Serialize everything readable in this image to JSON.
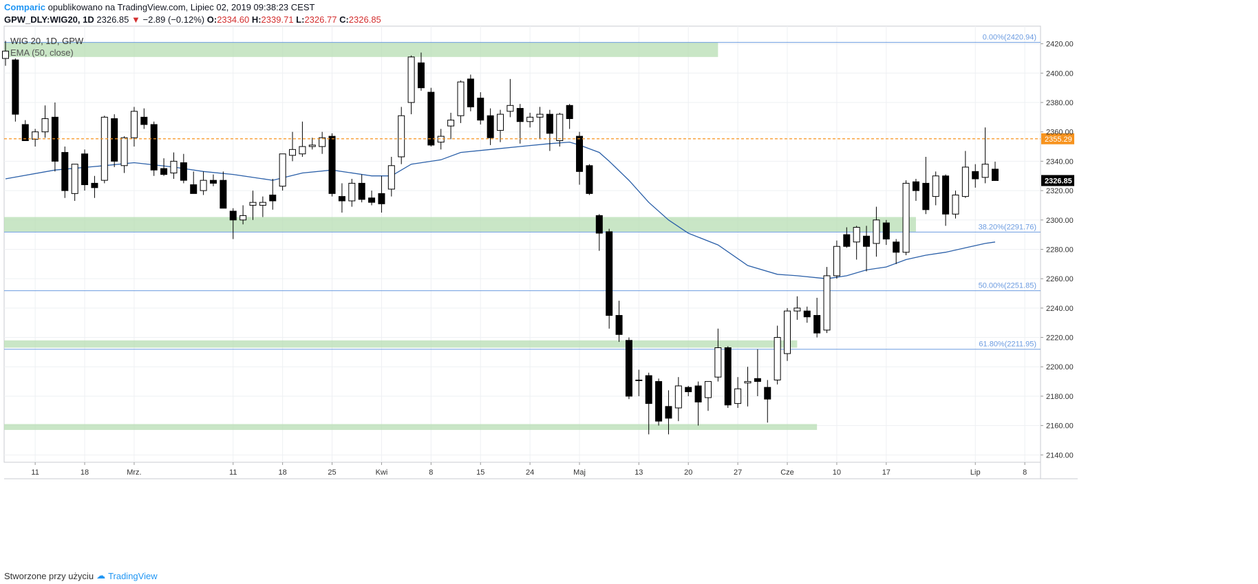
{
  "header": {
    "author": "Comparic",
    "published_text": "opublikowano na TradingView.com, Lipiec 02, 2019 09:38:23 CEST",
    "symbol": "GPW_DLY:WIG20, 1D",
    "last": "2326.85",
    "change": "−2.89 (−0.12%)",
    "o_label": "O:",
    "o_value": "2334.60",
    "h_label": "H:",
    "h_value": "2339.71",
    "l_label": "L:",
    "l_value": "2326.77",
    "c_label": "C:",
    "c_value": "2326.85"
  },
  "legend": {
    "series_name": "WIG 20, 1D, GPW",
    "indicator": "EMA (50, close)"
  },
  "footer": {
    "created_with": "Stworzone przy użyciu",
    "brand": "TradingView"
  },
  "colors": {
    "up_candle_fill": "#ffffff",
    "down_candle_fill": "#000000",
    "ema": "#2a5fa8",
    "fib_line": "#6b9be0",
    "zone": "#b7ddb3",
    "price_line": "#f7931e",
    "grid": "#eef0f3"
  },
  "chart_data": {
    "type": "candlestick",
    "y_range": [
      2135,
      2432
    ],
    "y_ticks": [
      2140,
      2160,
      2180,
      2200,
      2220,
      2240,
      2260,
      2280,
      2300,
      2320,
      2340,
      2360,
      2380,
      2400,
      2420
    ],
    "x_tick_labels": [
      {
        "label": "11",
        "i": 3
      },
      {
        "label": "18",
        "i": 8
      },
      {
        "label": "Mrz.",
        "i": 13
      },
      {
        "label": "11",
        "i": 23
      },
      {
        "label": "18",
        "i": 28
      },
      {
        "label": "25",
        "i": 33
      },
      {
        "label": "Kwi",
        "i": 38
      },
      {
        "label": "8",
        "i": 43
      },
      {
        "label": "15",
        "i": 48
      },
      {
        "label": "24",
        "i": 53
      },
      {
        "label": "Maj",
        "i": 58
      },
      {
        "label": "13",
        "i": 64
      },
      {
        "label": "20",
        "i": 69
      },
      {
        "label": "27",
        "i": 74
      },
      {
        "label": "Cze",
        "i": 79
      },
      {
        "label": "10",
        "i": 84
      },
      {
        "label": "17",
        "i": 89
      },
      {
        "label": "Lip",
        "i": 98
      },
      {
        "label": "8",
        "i": 103
      }
    ],
    "candles": [
      {
        "i": 0,
        "o": 2410,
        "h": 2422,
        "l": 2405,
        "c": 2415
      },
      {
        "i": 1,
        "o": 2409,
        "h": 2410,
        "l": 2367,
        "c": 2372
      },
      {
        "i": 2,
        "o": 2365,
        "h": 2368,
        "l": 2355,
        "c": 2354
      },
      {
        "i": 3,
        "o": 2355,
        "h": 2362,
        "l": 2350,
        "c": 2360
      },
      {
        "i": 4,
        "o": 2360,
        "h": 2378,
        "l": 2356,
        "c": 2369
      },
      {
        "i": 5,
        "o": 2370,
        "h": 2380,
        "l": 2333,
        "c": 2340
      },
      {
        "i": 6,
        "o": 2346,
        "h": 2350,
        "l": 2315,
        "c": 2320
      },
      {
        "i": 7,
        "o": 2318,
        "h": 2338,
        "l": 2313,
        "c": 2338
      },
      {
        "i": 8,
        "o": 2345,
        "h": 2348,
        "l": 2320,
        "c": 2324
      },
      {
        "i": 9,
        "o": 2325,
        "h": 2330,
        "l": 2315,
        "c": 2322
      },
      {
        "i": 10,
        "o": 2327,
        "h": 2371,
        "l": 2325,
        "c": 2370
      },
      {
        "i": 11,
        "o": 2369,
        "h": 2372,
        "l": 2336,
        "c": 2340
      },
      {
        "i": 12,
        "o": 2337,
        "h": 2357,
        "l": 2332,
        "c": 2356
      },
      {
        "i": 13,
        "o": 2356,
        "h": 2377,
        "l": 2350,
        "c": 2374
      },
      {
        "i": 14,
        "o": 2370,
        "h": 2376,
        "l": 2362,
        "c": 2365
      },
      {
        "i": 15,
        "o": 2365,
        "h": 2367,
        "l": 2330,
        "c": 2334
      },
      {
        "i": 16,
        "o": 2335,
        "h": 2342,
        "l": 2330,
        "c": 2331
      },
      {
        "i": 17,
        "o": 2332,
        "h": 2346,
        "l": 2328,
        "c": 2340
      },
      {
        "i": 18,
        "o": 2339,
        "h": 2345,
        "l": 2325,
        "c": 2327
      },
      {
        "i": 19,
        "o": 2324,
        "h": 2333,
        "l": 2318,
        "c": 2318
      },
      {
        "i": 20,
        "o": 2320,
        "h": 2333,
        "l": 2317,
        "c": 2327
      },
      {
        "i": 21,
        "o": 2327,
        "h": 2331,
        "l": 2323,
        "c": 2325
      },
      {
        "i": 22,
        "o": 2327,
        "h": 2333,
        "l": 2310,
        "c": 2308
      },
      {
        "i": 23,
        "o": 2306,
        "h": 2308,
        "l": 2287,
        "c": 2300
      },
      {
        "i": 24,
        "o": 2300,
        "h": 2310,
        "l": 2297,
        "c": 2303
      },
      {
        "i": 25,
        "o": 2310,
        "h": 2320,
        "l": 2300,
        "c": 2312
      },
      {
        "i": 26,
        "o": 2310,
        "h": 2316,
        "l": 2302,
        "c": 2312
      },
      {
        "i": 27,
        "o": 2317,
        "h": 2328,
        "l": 2307,
        "c": 2313
      },
      {
        "i": 28,
        "o": 2323,
        "h": 2345,
        "l": 2320,
        "c": 2345
      },
      {
        "i": 29,
        "o": 2344,
        "h": 2360,
        "l": 2340,
        "c": 2348
      },
      {
        "i": 30,
        "o": 2345,
        "h": 2367,
        "l": 2343,
        "c": 2350
      },
      {
        "i": 31,
        "o": 2350,
        "h": 2356,
        "l": 2348,
        "c": 2351
      },
      {
        "i": 32,
        "o": 2350,
        "h": 2360,
        "l": 2345,
        "c": 2356
      },
      {
        "i": 33,
        "o": 2357,
        "h": 2359,
        "l": 2316,
        "c": 2318
      },
      {
        "i": 34,
        "o": 2316,
        "h": 2325,
        "l": 2305,
        "c": 2313
      },
      {
        "i": 35,
        "o": 2313,
        "h": 2328,
        "l": 2309,
        "c": 2325
      },
      {
        "i": 36,
        "o": 2325,
        "h": 2331,
        "l": 2312,
        "c": 2314
      },
      {
        "i": 37,
        "o": 2315,
        "h": 2320,
        "l": 2310,
        "c": 2312
      },
      {
        "i": 38,
        "o": 2318,
        "h": 2330,
        "l": 2305,
        "c": 2311
      },
      {
        "i": 39,
        "o": 2321,
        "h": 2343,
        "l": 2316,
        "c": 2337
      },
      {
        "i": 40,
        "o": 2343,
        "h": 2377,
        "l": 2338,
        "c": 2371
      },
      {
        "i": 41,
        "o": 2380,
        "h": 2412,
        "l": 2372,
        "c": 2411
      },
      {
        "i": 42,
        "o": 2407,
        "h": 2414,
        "l": 2388,
        "c": 2390
      },
      {
        "i": 43,
        "o": 2387,
        "h": 2390,
        "l": 2350,
        "c": 2351
      },
      {
        "i": 44,
        "o": 2353,
        "h": 2362,
        "l": 2348,
        "c": 2357
      },
      {
        "i": 45,
        "o": 2364,
        "h": 2373,
        "l": 2355,
        "c": 2368
      },
      {
        "i": 46,
        "o": 2371,
        "h": 2395,
        "l": 2366,
        "c": 2394
      },
      {
        "i": 47,
        "o": 2396,
        "h": 2399,
        "l": 2374,
        "c": 2377
      },
      {
        "i": 48,
        "o": 2383,
        "h": 2387,
        "l": 2365,
        "c": 2368
      },
      {
        "i": 49,
        "o": 2371,
        "h": 2376,
        "l": 2351,
        "c": 2356
      },
      {
        "i": 50,
        "o": 2361,
        "h": 2375,
        "l": 2353,
        "c": 2372
      },
      {
        "i": 51,
        "o": 2374,
        "h": 2396,
        "l": 2370,
        "c": 2378
      },
      {
        "i": 52,
        "o": 2376,
        "h": 2379,
        "l": 2352,
        "c": 2367
      },
      {
        "i": 53,
        "o": 2367,
        "h": 2373,
        "l": 2363,
        "c": 2370
      },
      {
        "i": 54,
        "o": 2370,
        "h": 2377,
        "l": 2355,
        "c": 2372
      },
      {
        "i": 55,
        "o": 2372,
        "h": 2375,
        "l": 2347,
        "c": 2359
      },
      {
        "i": 56,
        "o": 2354,
        "h": 2373,
        "l": 2350,
        "c": 2372
      },
      {
        "i": 57,
        "o": 2378,
        "h": 2379,
        "l": 2362,
        "c": 2369
      },
      {
        "i": 58,
        "o": 2357,
        "h": 2360,
        "l": 2324,
        "c": 2333
      },
      {
        "i": 59,
        "o": 2337,
        "h": 2338,
        "l": 2317,
        "c": 2318
      },
      {
        "i": 60,
        "o": 2303,
        "h": 2304,
        "l": 2279,
        "c": 2291
      },
      {
        "i": 61,
        "o": 2292,
        "h": 2294,
        "l": 2226,
        "c": 2235
      },
      {
        "i": 62,
        "o": 2235,
        "h": 2245,
        "l": 2217,
        "c": 2222
      },
      {
        "i": 63,
        "o": 2218,
        "h": 2220,
        "l": 2178,
        "c": 2180
      },
      {
        "i": 64,
        "o": 2191,
        "h": 2198,
        "l": 2180,
        "c": 2191
      },
      {
        "i": 65,
        "o": 2194,
        "h": 2196,
        "l": 2154,
        "c": 2175
      },
      {
        "i": 66,
        "o": 2190,
        "h": 2192,
        "l": 2160,
        "c": 2163
      },
      {
        "i": 67,
        "o": 2173,
        "h": 2184,
        "l": 2154,
        "c": 2165
      },
      {
        "i": 68,
        "o": 2172,
        "h": 2193,
        "l": 2163,
        "c": 2187
      },
      {
        "i": 69,
        "o": 2186,
        "h": 2187,
        "l": 2180,
        "c": 2183
      },
      {
        "i": 70,
        "o": 2187,
        "h": 2190,
        "l": 2160,
        "c": 2176
      },
      {
        "i": 71,
        "o": 2179,
        "h": 2190,
        "l": 2170,
        "c": 2190
      },
      {
        "i": 72,
        "o": 2193,
        "h": 2226,
        "l": 2190,
        "c": 2213
      },
      {
        "i": 73,
        "o": 2213,
        "h": 2214,
        "l": 2172,
        "c": 2174
      },
      {
        "i": 74,
        "o": 2175,
        "h": 2193,
        "l": 2172,
        "c": 2185
      },
      {
        "i": 75,
        "o": 2189,
        "h": 2200,
        "l": 2173,
        "c": 2190
      },
      {
        "i": 76,
        "o": 2192,
        "h": 2212,
        "l": 2180,
        "c": 2190
      },
      {
        "i": 77,
        "o": 2186,
        "h": 2191,
        "l": 2162,
        "c": 2178
      },
      {
        "i": 78,
        "o": 2191,
        "h": 2228,
        "l": 2188,
        "c": 2220
      },
      {
        "i": 79,
        "o": 2209,
        "h": 2240,
        "l": 2204,
        "c": 2238
      },
      {
        "i": 80,
        "o": 2238,
        "h": 2248,
        "l": 2232,
        "c": 2240
      },
      {
        "i": 81,
        "o": 2238,
        "h": 2241,
        "l": 2230,
        "c": 2234
      },
      {
        "i": 82,
        "o": 2235,
        "h": 2247,
        "l": 2220,
        "c": 2223
      },
      {
        "i": 83,
        "o": 2225,
        "h": 2268,
        "l": 2223,
        "c": 2262
      },
      {
        "i": 84,
        "o": 2262,
        "h": 2286,
        "l": 2260,
        "c": 2282
      },
      {
        "i": 85,
        "o": 2290,
        "h": 2295,
        "l": 2281,
        "c": 2282
      },
      {
        "i": 86,
        "o": 2285,
        "h": 2296,
        "l": 2273,
        "c": 2295
      },
      {
        "i": 87,
        "o": 2289,
        "h": 2296,
        "l": 2265,
        "c": 2282
      },
      {
        "i": 88,
        "o": 2284,
        "h": 2309,
        "l": 2275,
        "c": 2300
      },
      {
        "i": 89,
        "o": 2298,
        "h": 2300,
        "l": 2283,
        "c": 2287
      },
      {
        "i": 90,
        "o": 2285,
        "h": 2287,
        "l": 2270,
        "c": 2278
      },
      {
        "i": 91,
        "o": 2278,
        "h": 2327,
        "l": 2276,
        "c": 2325
      },
      {
        "i": 92,
        "o": 2326,
        "h": 2328,
        "l": 2313,
        "c": 2320
      },
      {
        "i": 93,
        "o": 2325,
        "h": 2343,
        "l": 2304,
        "c": 2307
      },
      {
        "i": 94,
        "o": 2316,
        "h": 2333,
        "l": 2310,
        "c": 2330
      },
      {
        "i": 95,
        "o": 2330,
        "h": 2331,
        "l": 2296,
        "c": 2304
      },
      {
        "i": 96,
        "o": 2304,
        "h": 2320,
        "l": 2301,
        "c": 2317
      },
      {
        "i": 97,
        "o": 2316,
        "h": 2347,
        "l": 2315,
        "c": 2336
      },
      {
        "i": 98,
        "o": 2333,
        "h": 2338,
        "l": 2322,
        "c": 2328
      },
      {
        "i": 99,
        "o": 2329,
        "h": 2363,
        "l": 2325,
        "c": 2338
      },
      {
        "i": 100,
        "o": 2334.6,
        "h": 2339.71,
        "l": 2326.77,
        "c": 2326.85
      }
    ],
    "ema50": [
      {
        "i": 0,
        "v": 2328
      },
      {
        "i": 5,
        "v": 2334
      },
      {
        "i": 10,
        "v": 2337
      },
      {
        "i": 13,
        "v": 2339
      },
      {
        "i": 17,
        "v": 2336
      },
      {
        "i": 20,
        "v": 2333
      },
      {
        "i": 23,
        "v": 2331
      },
      {
        "i": 27,
        "v": 2327
      },
      {
        "i": 30,
        "v": 2332
      },
      {
        "i": 33,
        "v": 2334
      },
      {
        "i": 37,
        "v": 2330
      },
      {
        "i": 39,
        "v": 2330
      },
      {
        "i": 41,
        "v": 2338
      },
      {
        "i": 44,
        "v": 2341
      },
      {
        "i": 46,
        "v": 2346
      },
      {
        "i": 49,
        "v": 2348
      },
      {
        "i": 52,
        "v": 2350
      },
      {
        "i": 55,
        "v": 2352
      },
      {
        "i": 57,
        "v": 2353
      },
      {
        "i": 58,
        "v": 2351
      },
      {
        "i": 60,
        "v": 2346
      },
      {
        "i": 61,
        "v": 2340
      },
      {
        "i": 63,
        "v": 2327
      },
      {
        "i": 65,
        "v": 2312
      },
      {
        "i": 67,
        "v": 2300
      },
      {
        "i": 69,
        "v": 2291
      },
      {
        "i": 72,
        "v": 2283
      },
      {
        "i": 75,
        "v": 2269
      },
      {
        "i": 78,
        "v": 2263
      },
      {
        "i": 80,
        "v": 2262
      },
      {
        "i": 83,
        "v": 2260
      },
      {
        "i": 85,
        "v": 2262
      },
      {
        "i": 87,
        "v": 2266
      },
      {
        "i": 89,
        "v": 2268
      },
      {
        "i": 91,
        "v": 2273
      },
      {
        "i": 93,
        "v": 2276
      },
      {
        "i": 95,
        "v": 2278
      },
      {
        "i": 97,
        "v": 2281
      },
      {
        "i": 99,
        "v": 2284
      },
      {
        "i": 100,
        "v": 2285
      }
    ],
    "fib_levels": [
      {
        "label": "0.00%(2420.94)",
        "value": 2420.94
      },
      {
        "label": "38.20%(2291.76)",
        "value": 2291.76
      },
      {
        "label": "50.00%(2251.85)",
        "value": 2251.85
      },
      {
        "label": "61.80%(2211.95)",
        "value": 2211.95
      }
    ],
    "zones": [
      {
        "from_i": -0.5,
        "to_i": 72,
        "low": 2411,
        "high": 2421
      },
      {
        "from_i": -0.5,
        "to_i": 92,
        "low": 2292,
        "high": 2302
      },
      {
        "from_i": -0.5,
        "to_i": 80,
        "low": 2213,
        "high": 2218
      },
      {
        "from_i": -0.5,
        "to_i": 82,
        "low": 2157,
        "high": 2161
      }
    ],
    "price_line": {
      "value": 2355.29,
      "label": "2355.29"
    },
    "last_price_label": "2326.85"
  }
}
